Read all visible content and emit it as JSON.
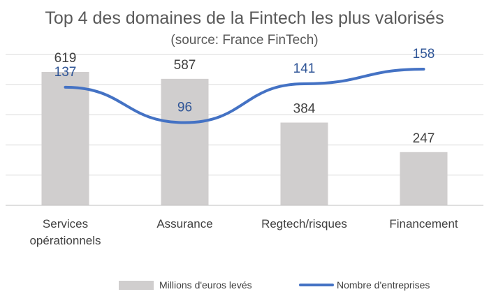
{
  "title": "Top 4 des domaines de la Fintech les plus valorisés",
  "subtitle": "(source: France FinTech)",
  "chart_data": {
    "type": "bar",
    "categories": [
      "Services opérationnels",
      "Assurance",
      "Regtech/risques",
      "Financement"
    ],
    "category_lines": [
      [
        "Services",
        "opérationnels"
      ],
      [
        "Assurance"
      ],
      [
        "Regtech/risques"
      ],
      [
        "Financement"
      ]
    ],
    "series": [
      {
        "name": "Millions d'euros levés",
        "type": "bar",
        "values": [
          619,
          587,
          384,
          247
        ],
        "color": "#d0cece",
        "label_color": "#404040"
      },
      {
        "name": "Nombre d'entreprises",
        "type": "line",
        "values": [
          137,
          96,
          141,
          158
        ],
        "color": "#4472c4",
        "label_color": "#2f5597"
      }
    ],
    "ylim_bars": [
      0,
      700
    ],
    "ylim_line": [
      0,
      175
    ],
    "gridlines": true,
    "legend_position": "bottom"
  }
}
